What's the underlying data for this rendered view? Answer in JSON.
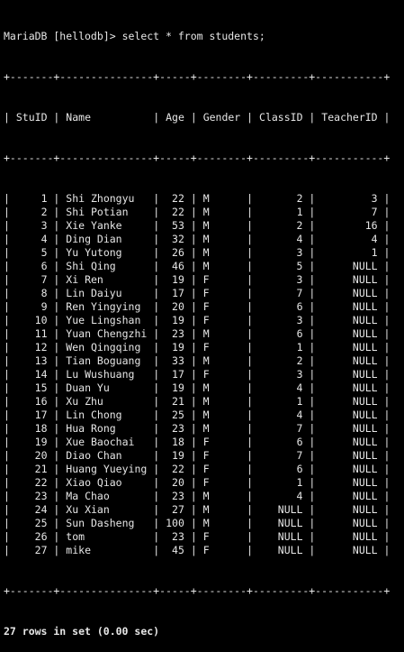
{
  "prompt": "MariaDB [hellodb]> ",
  "command": "select * from students;",
  "columns": [
    "StuID",
    "Name",
    "Age",
    "Gender",
    "ClassID",
    "TeacherID"
  ],
  "rows": [
    [
      "1",
      "Shi Zhongyu",
      "22",
      "M",
      "2",
      "3"
    ],
    [
      "2",
      "Shi Potian",
      "22",
      "M",
      "1",
      "7"
    ],
    [
      "3",
      "Xie Yanke",
      "53",
      "M",
      "2",
      "16"
    ],
    [
      "4",
      "Ding Dian",
      "32",
      "M",
      "4",
      "4"
    ],
    [
      "5",
      "Yu Yutong",
      "26",
      "M",
      "3",
      "1"
    ],
    [
      "6",
      "Shi Qing",
      "46",
      "M",
      "5",
      "NULL"
    ],
    [
      "7",
      "Xi Ren",
      "19",
      "F",
      "3",
      "NULL"
    ],
    [
      "8",
      "Lin Daiyu",
      "17",
      "F",
      "7",
      "NULL"
    ],
    [
      "9",
      "Ren Yingying",
      "20",
      "F",
      "6",
      "NULL"
    ],
    [
      "10",
      "Yue Lingshan",
      "19",
      "F",
      "3",
      "NULL"
    ],
    [
      "11",
      "Yuan Chengzhi",
      "23",
      "M",
      "6",
      "NULL"
    ],
    [
      "12",
      "Wen Qingqing",
      "19",
      "F",
      "1",
      "NULL"
    ],
    [
      "13",
      "Tian Boguang",
      "33",
      "M",
      "2",
      "NULL"
    ],
    [
      "14",
      "Lu Wushuang",
      "17",
      "F",
      "3",
      "NULL"
    ],
    [
      "15",
      "Duan Yu",
      "19",
      "M",
      "4",
      "NULL"
    ],
    [
      "16",
      "Xu Zhu",
      "21",
      "M",
      "1",
      "NULL"
    ],
    [
      "17",
      "Lin Chong",
      "25",
      "M",
      "4",
      "NULL"
    ],
    [
      "18",
      "Hua Rong",
      "23",
      "M",
      "7",
      "NULL"
    ],
    [
      "19",
      "Xue Baochai",
      "18",
      "F",
      "6",
      "NULL"
    ],
    [
      "20",
      "Diao Chan",
      "19",
      "F",
      "7",
      "NULL"
    ],
    [
      "21",
      "Huang Yueying",
      "22",
      "F",
      "6",
      "NULL"
    ],
    [
      "22",
      "Xiao Qiao",
      "20",
      "F",
      "1",
      "NULL"
    ],
    [
      "23",
      "Ma Chao",
      "23",
      "M",
      "4",
      "NULL"
    ],
    [
      "24",
      "Xu Xian",
      "27",
      "M",
      "NULL",
      "NULL"
    ],
    [
      "25",
      "Sun Dasheng",
      "100",
      "M",
      "NULL",
      "NULL"
    ],
    [
      "26",
      "tom",
      "23",
      "F",
      "NULL",
      "NULL"
    ],
    [
      "27",
      "mike",
      "45",
      "F",
      "NULL",
      "NULL"
    ]
  ],
  "footer": "27 rows in set (0.00 sec)",
  "colors": {
    "background": "#000000",
    "text": "#e6e6e6"
  }
}
